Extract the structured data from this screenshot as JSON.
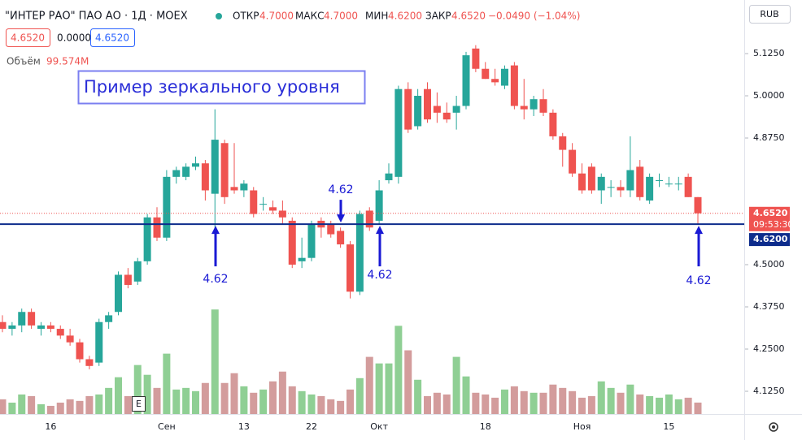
{
  "header": {
    "title": "\"ИНТЕР РАО\" ПАО АО · 1Д · MOEX",
    "open_label": "ОТКР",
    "open": "4.7000",
    "high_label": "МАКС",
    "high": "4.7000",
    "low_label": "МИН",
    "low": "4.6200",
    "close_label": "ЗАКР",
    "close": "4.6520",
    "change": "−0.0490 (−1.04%)",
    "boxes": [
      "4.6520",
      "0.0000",
      "4.6520"
    ],
    "volume_label": "Объём",
    "volume": "99.574M",
    "currency": "RUB",
    "e_badge": "E"
  },
  "chart_data": {
    "type": "candlestick",
    "categories": [
      null,
      null,
      null,
      null,
      null,
      "16",
      null,
      null,
      null,
      null,
      null,
      null,
      null,
      null,
      null,
      null,
      null,
      "Сен",
      null,
      null,
      null,
      null,
      null,
      null,
      null,
      "13",
      null,
      null,
      null,
      null,
      null,
      null,
      "22",
      null,
      null,
      null,
      null,
      null,
      null,
      "Окт",
      null,
      null,
      null,
      null,
      null,
      null,
      null,
      null,
      null,
      null,
      "18",
      null,
      null,
      null,
      null,
      null,
      null,
      null,
      null,
      null,
      "Ноя",
      null,
      null,
      null,
      null,
      null,
      null,
      null,
      null,
      "15",
      null,
      null,
      null
    ],
    "open": [
      4.33,
      4.31,
      4.32,
      4.36,
      4.31,
      4.32,
      4.31,
      4.29,
      4.27,
      4.22,
      4.21,
      4.33,
      4.36,
      4.47,
      4.45,
      4.51,
      4.64,
      4.58,
      4.76,
      4.76,
      4.79,
      4.8,
      4.71,
      4.86,
      4.73,
      4.72,
      4.72,
      4.68,
      4.67,
      4.66,
      4.63,
      4.51,
      4.52,
      4.63,
      4.62,
      4.6,
      4.56,
      4.42,
      4.66,
      4.63,
      4.75,
      4.76,
      5.02,
      4.91,
      5.02,
      4.97,
      4.95,
      4.95,
      4.97,
      5.14,
      5.08,
      5.05,
      5.03,
      5.09,
      4.97,
      4.96,
      4.99,
      4.95,
      4.88,
      4.84,
      4.77,
      4.79,
      4.72,
      4.73,
      4.73,
      4.72,
      4.79,
      4.69,
      4.75,
      4.74,
      4.74,
      4.76,
      4.7
    ],
    "high": [
      4.35,
      4.33,
      4.37,
      4.37,
      4.33,
      4.33,
      4.32,
      4.31,
      4.28,
      4.23,
      4.34,
      4.36,
      4.48,
      4.49,
      4.52,
      4.65,
      4.67,
      4.78,
      4.79,
      4.8,
      4.82,
      4.81,
      4.96,
      4.87,
      4.86,
      4.75,
      4.73,
      4.7,
      4.69,
      4.69,
      4.64,
      4.58,
      4.63,
      4.64,
      4.63,
      4.61,
      4.57,
      4.66,
      4.67,
      4.75,
      4.8,
      5.03,
      5.04,
      5.02,
      5.04,
      5.01,
      4.98,
      5.0,
      5.13,
      5.15,
      5.1,
      5.08,
      5.09,
      5.1,
      5.05,
      5.0,
      5.02,
      4.96,
      4.89,
      4.86,
      4.8,
      4.8,
      4.77,
      4.75,
      4.75,
      4.88,
      4.81,
      4.77,
      4.77,
      4.76,
      4.76,
      4.77,
      4.7
    ],
    "low": [
      4.3,
      4.29,
      4.3,
      4.31,
      4.29,
      4.3,
      4.28,
      4.26,
      4.21,
      4.19,
      4.2,
      4.31,
      4.35,
      4.43,
      4.44,
      4.5,
      4.57,
      4.57,
      4.74,
      4.75,
      4.78,
      4.69,
      4.59,
      4.68,
      4.71,
      4.7,
      4.64,
      4.66,
      4.65,
      4.62,
      4.49,
      4.49,
      4.51,
      4.58,
      4.58,
      4.55,
      4.4,
      4.41,
      4.6,
      4.62,
      4.74,
      4.74,
      4.89,
      4.9,
      4.92,
      4.92,
      4.92,
      4.9,
      4.96,
      5.07,
      5.05,
      5.03,
      5.02,
      4.96,
      4.93,
      4.94,
      4.94,
      4.87,
      4.79,
      4.76,
      4.71,
      4.71,
      4.68,
      4.7,
      4.7,
      4.7,
      4.69,
      4.68,
      4.73,
      4.73,
      4.72,
      4.7,
      4.62
    ],
    "close": [
      4.31,
      4.32,
      4.36,
      4.32,
      4.32,
      4.31,
      4.29,
      4.27,
      4.22,
      4.2,
      4.33,
      4.35,
      4.47,
      4.44,
      4.51,
      4.64,
      4.58,
      4.76,
      4.78,
      4.79,
      4.8,
      4.72,
      4.87,
      4.7,
      4.72,
      4.74,
      4.65,
      4.68,
      4.66,
      4.64,
      4.5,
      4.52,
      4.62,
      4.61,
      4.59,
      4.56,
      4.42,
      4.65,
      4.61,
      4.72,
      4.77,
      5.02,
      4.9,
      5.0,
      4.93,
      4.95,
      4.93,
      4.97,
      5.12,
      5.08,
      5.05,
      5.04,
      5.08,
      4.97,
      4.96,
      4.99,
      4.95,
      4.88,
      4.84,
      4.77,
      4.72,
      4.72,
      4.76,
      4.73,
      4.72,
      4.78,
      4.7,
      4.76,
      4.75,
      4.74,
      4.74,
      4.7,
      4.652
    ],
    "volume": [
      128,
      99,
      170,
      156,
      85,
      71,
      99,
      128,
      114,
      156,
      170,
      227,
      320,
      156,
      426,
      341,
      227,
      525,
      213,
      227,
      199,
      270,
      909,
      270,
      355,
      241,
      185,
      213,
      284,
      369,
      241,
      199,
      170,
      156,
      128,
      114,
      213,
      312,
      497,
      440,
      440,
      767,
      554,
      298,
      156,
      185,
      170,
      497,
      327,
      185,
      170,
      142,
      213,
      241,
      199,
      185,
      185,
      256,
      227,
      199,
      142,
      156,
      284,
      227,
      185,
      256,
      170,
      156,
      142,
      170,
      128,
      142,
      99.574
    ],
    "volume_ylim": [
      0,
      3600
    ],
    "up_color": "#26a69a",
    "down_color": "#ef5350",
    "vol_up_color": "#8fcf94",
    "vol_down_color": "#d39c9c",
    "ylim": [
      4.0577,
      5.2837
    ],
    "yticks": [
      {
        "value": 4.125,
        "label": "4.1250"
      },
      {
        "value": 4.25,
        "label": "4.2500"
      },
      {
        "value": 4.375,
        "label": "4.3750"
      },
      {
        "value": 4.5,
        "label": "4.5000"
      },
      {
        "value": 4.875,
        "label": "4.8750"
      },
      {
        "value": 5.0,
        "label": "5.0000"
      },
      {
        "value": 5.125,
        "label": "5.1250"
      }
    ],
    "level": {
      "value": 4.62,
      "label": "4.6200"
    },
    "last_price": {
      "value": 4.652,
      "label": "4.6520"
    },
    "last_time": "09:53:30",
    "annotation": "Пример зеркального уровня",
    "arrow_labels": [
      "4.62",
      "4.62",
      "4.62",
      "4.62"
    ]
  }
}
